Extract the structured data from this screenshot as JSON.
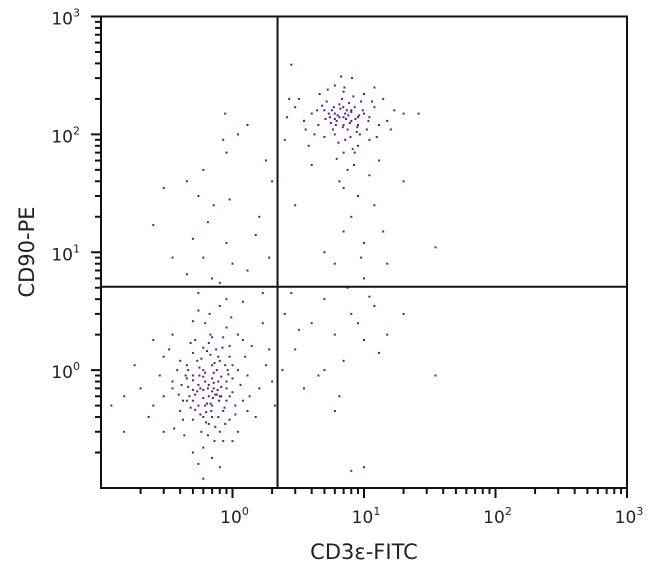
{
  "chart_data": {
    "type": "scatter",
    "xlabel": "CD3ε-FITC",
    "ylabel": "CD90-PE",
    "xscale": "log",
    "yscale": "log",
    "xlim": [
      0.1,
      1000
    ],
    "ylim": [
      0.1,
      1000
    ],
    "x_ticks": [
      {
        "base": "10",
        "exp": "0",
        "value": 1
      },
      {
        "base": "10",
        "exp": "1",
        "value": 10
      },
      {
        "base": "10",
        "exp": "2",
        "value": 100
      },
      {
        "base": "10",
        "exp": "3",
        "value": 1000
      }
    ],
    "y_ticks": [
      {
        "base": "10",
        "exp": "0",
        "value": 1
      },
      {
        "base": "10",
        "exp": "1",
        "value": 10
      },
      {
        "base": "10",
        "exp": "2",
        "value": 100
      },
      {
        "base": "10",
        "exp": "3",
        "value": 1000
      }
    ],
    "grid": false,
    "quadrant_gates": {
      "x": 2.2,
      "y": 5.1
    },
    "point_color": "#5b1a8f",
    "points": [
      [
        0.65,
        0.7
      ],
      [
        0.5,
        0.9
      ],
      [
        0.8,
        0.6
      ],
      [
        0.7,
        1.1
      ],
      [
        0.45,
        0.55
      ],
      [
        0.9,
        0.8
      ],
      [
        0.6,
        0.4
      ],
      [
        0.75,
        1.5
      ],
      [
        0.55,
        0.75
      ],
      [
        1.0,
        0.65
      ],
      [
        0.4,
        1.2
      ],
      [
        0.85,
        0.45
      ],
      [
        0.62,
        0.95
      ],
      [
        0.7,
        0.5
      ],
      [
        0.52,
        0.62
      ],
      [
        1.1,
        1.0
      ],
      [
        0.68,
        2.0
      ],
      [
        0.35,
        0.8
      ],
      [
        0.95,
        1.3
      ],
      [
        0.58,
        0.3
      ],
      [
        0.72,
        0.78
      ],
      [
        0.48,
        0.48
      ],
      [
        0.82,
        0.88
      ],
      [
        1.2,
        0.55
      ],
      [
        0.3,
        0.6
      ],
      [
        0.66,
        1.7
      ],
      [
        0.88,
        0.35
      ],
      [
        0.6,
        0.58
      ],
      [
        0.77,
        0.68
      ],
      [
        0.5,
        1.4
      ],
      [
        1.3,
        0.9
      ],
      [
        0.42,
        0.38
      ],
      [
        0.73,
        0.25
      ],
      [
        0.9,
        2.3
      ],
      [
        0.56,
        1.05
      ],
      [
        0.64,
        0.52
      ],
      [
        0.8,
        1.2
      ],
      [
        0.46,
        0.72
      ],
      [
        1.05,
        0.42
      ],
      [
        0.7,
        0.85
      ],
      [
        0.38,
        1.0
      ],
      [
        0.6,
        0.22
      ],
      [
        0.95,
        0.6
      ],
      [
        0.54,
        0.66
      ],
      [
        0.78,
        0.4
      ],
      [
        1.4,
        1.6
      ],
      [
        0.25,
        0.5
      ],
      [
        0.67,
        3.0
      ],
      [
        0.85,
        1.9
      ],
      [
        0.5,
        0.2
      ],
      [
        0.62,
        0.8
      ],
      [
        0.74,
        0.62
      ],
      [
        0.44,
        0.9
      ],
      [
        1.0,
        1.1
      ],
      [
        0.58,
        1.25
      ],
      [
        0.8,
        0.3
      ],
      [
        0.69,
        0.45
      ],
      [
        0.36,
        0.32
      ],
      [
        1.15,
        0.75
      ],
      [
        0.52,
        1.8
      ],
      [
        0.9,
        0.55
      ],
      [
        0.63,
        0.36
      ],
      [
        0.47,
        0.6
      ],
      [
        0.76,
        1.0
      ],
      [
        1.6,
        0.7
      ],
      [
        0.33,
        1.5
      ],
      [
        0.7,
        0.18
      ],
      [
        0.98,
        2.8
      ],
      [
        0.55,
        0.5
      ],
      [
        0.82,
        0.72
      ],
      [
        0.6,
        1.55
      ],
      [
        0.4,
        0.45
      ],
      [
        1.25,
        1.3
      ],
      [
        0.71,
        0.58
      ],
      [
        0.5,
        0.82
      ],
      [
        0.87,
        0.48
      ],
      [
        0.2,
        0.7
      ],
      [
        0.65,
        0.28
      ],
      [
        1.1,
        2.0
      ],
      [
        0.45,
        1.1
      ],
      [
        0.93,
        0.92
      ],
      [
        0.57,
        0.42
      ],
      [
        0.79,
        0.55
      ],
      [
        0.68,
        1.35
      ],
      [
        1.8,
        1.1
      ],
      [
        0.28,
        0.9
      ],
      [
        0.6,
        0.68
      ],
      [
        0.74,
        0.33
      ],
      [
        0.5,
        0.38
      ],
      [
        1.05,
        0.5
      ],
      [
        0.62,
        2.5
      ],
      [
        0.84,
        1.55
      ],
      [
        0.39,
        0.62
      ],
      [
        0.72,
        0.95
      ],
      [
        0.55,
        0.16
      ],
      [
        1.5,
        0.4
      ],
      [
        0.66,
        0.6
      ],
      [
        0.48,
        1.7
      ],
      [
        0.9,
        0.7
      ],
      [
        0.6,
        0.88
      ],
      [
        0.15,
        0.6
      ],
      [
        0.78,
        0.8
      ],
      [
        0.43,
        0.28
      ],
      [
        1.2,
        1.8
      ],
      [
        0.7,
        0.4
      ],
      [
        0.54,
        1.2
      ],
      [
        0.35,
        2.0
      ],
      [
        0.95,
        0.38
      ],
      [
        0.62,
        0.5
      ],
      [
        2.0,
        0.8
      ],
      [
        0.8,
        3.5
      ],
      [
        0.5,
        0.55
      ],
      [
        0.73,
        1.15
      ],
      [
        0.3,
        0.3
      ],
      [
        1.0,
        0.85
      ],
      [
        0.57,
        0.7
      ],
      [
        0.85,
        0.25
      ],
      [
        0.66,
        0.75
      ],
      [
        0.46,
        1.0
      ],
      [
        1.35,
        0.6
      ],
      [
        0.18,
        1.1
      ],
      [
        0.6,
        0.12
      ],
      [
        0.7,
        1.9
      ],
      [
        0.88,
        1.1
      ],
      [
        0.52,
        0.46
      ],
      [
        0.76,
        0.62
      ],
      [
        1.1,
        0.3
      ],
      [
        0.41,
        0.75
      ],
      [
        0.64,
        1.45
      ],
      [
        0.9,
        4.0
      ],
      [
        0.5,
        2.6
      ],
      [
        1.7,
        2.5
      ],
      [
        0.23,
        0.4
      ],
      [
        0.12,
        0.5
      ],
      [
        0.8,
        0.15
      ],
      [
        0.55,
        3.2
      ],
      [
        0.95,
        1.6
      ],
      [
        0.68,
        0.52
      ],
      [
        0.42,
        0.55
      ],
      [
        0.72,
        0.7
      ],
      [
        1.3,
        0.45
      ],
      [
        0.6,
        1.0
      ],
      [
        0.35,
        0.7
      ],
      [
        0.82,
        0.6
      ],
      [
        0.5,
        0.68
      ],
      [
        0.78,
        1.3
      ],
      [
        0.63,
        0.44
      ],
      [
        1.0,
        0.25
      ],
      [
        0.45,
        0.85
      ],
      [
        0.7,
        0.66
      ],
      [
        0.56,
        0.9
      ],
      [
        0.92,
        1.0
      ],
      [
        0.66,
        0.35
      ],
      [
        0.15,
        0.3
      ],
      [
        0.3,
        1.3
      ],
      [
        2.1,
        0.5
      ],
      [
        1.9,
        1.5
      ],
      [
        0.25,
        1.8
      ],
      [
        0.55,
        4.5
      ],
      [
        0.7,
        6
      ],
      [
        0.6,
        9
      ],
      [
        0.8,
        5.5
      ],
      [
        1.0,
        8
      ],
      [
        0.5,
        13
      ],
      [
        0.65,
        18
      ],
      [
        0.9,
        12
      ],
      [
        1.3,
        7
      ],
      [
        1.5,
        14
      ],
      [
        0.72,
        25
      ],
      [
        0.55,
        30
      ],
      [
        0.45,
        40
      ],
      [
        0.3,
        35
      ],
      [
        0.6,
        50
      ],
      [
        0.9,
        70
      ],
      [
        0.85,
        90
      ],
      [
        0.88,
        150
      ],
      [
        1.3,
        120
      ],
      [
        1.6,
        20
      ],
      [
        1.9,
        9
      ],
      [
        2.0,
        40
      ],
      [
        0.25,
        17
      ],
      [
        0.35,
        9
      ],
      [
        1.2,
        3.8
      ],
      [
        1.7,
        4.5
      ],
      [
        0.45,
        6.5
      ],
      [
        1.1,
        100
      ],
      [
        1.8,
        60
      ],
      [
        0.95,
        28
      ],
      [
        2.5,
        3
      ],
      [
        3,
        1.5
      ],
      [
        4,
        2.5
      ],
      [
        5,
        4
      ],
      [
        6,
        2
      ],
      [
        8,
        3
      ],
      [
        7,
        1.2
      ],
      [
        9,
        2.5
      ],
      [
        10,
        1.8
      ],
      [
        12,
        3.5
      ],
      [
        4.5,
        0.9
      ],
      [
        3.5,
        0.7
      ],
      [
        6.5,
        0.6
      ],
      [
        15,
        2
      ],
      [
        20,
        3
      ],
      [
        35,
        0.9
      ],
      [
        8,
        0.14
      ],
      [
        10,
        0.15
      ],
      [
        5,
        1
      ],
      [
        2.8,
        4.5
      ],
      [
        11,
        4.2
      ],
      [
        7.5,
        5
      ],
      [
        3.2,
        2.2
      ],
      [
        13,
        1.4
      ],
      [
        2.4,
        1
      ],
      [
        6,
        0.45
      ],
      [
        5,
        10
      ],
      [
        6,
        8
      ],
      [
        7,
        15
      ],
      [
        8,
        20
      ],
      [
        9,
        30
      ],
      [
        10,
        12
      ],
      [
        6.5,
        40
      ],
      [
        7.5,
        50
      ],
      [
        12,
        25
      ],
      [
        15,
        8
      ],
      [
        10,
        6
      ],
      [
        11,
        45
      ],
      [
        8.5,
        70
      ],
      [
        13,
        60
      ],
      [
        7,
        35
      ],
      [
        9.5,
        9
      ],
      [
        14,
        15
      ],
      [
        35,
        11
      ],
      [
        20,
        40
      ],
      [
        4,
        55
      ],
      [
        3,
        25
      ],
      [
        2.5,
        90
      ],
      [
        7,
        140
      ],
      [
        6,
        150
      ],
      [
        8,
        130
      ],
      [
        5,
        160
      ],
      [
        9,
        120
      ],
      [
        6.5,
        180
      ],
      [
        7.5,
        110
      ],
      [
        5.5,
        140
      ],
      [
        8.5,
        170
      ],
      [
        10,
        150
      ],
      [
        4.5,
        120
      ],
      [
        6.8,
        200
      ],
      [
        7.2,
        90
      ],
      [
        5.8,
        110
      ],
      [
        9.5,
        190
      ],
      [
        6.2,
        130
      ],
      [
        8,
        155
      ],
      [
        11,
        140
      ],
      [
        4,
        150
      ],
      [
        7,
        230
      ],
      [
        6,
        100
      ],
      [
        8.8,
        105
      ],
      [
        5.2,
        190
      ],
      [
        12,
        170
      ],
      [
        7.8,
        125
      ],
      [
        6.6,
        165
      ],
      [
        3.5,
        130
      ],
      [
        9,
        80
      ],
      [
        7,
        70
      ],
      [
        5,
        95
      ],
      [
        13,
        120
      ],
      [
        6.3,
        145
      ],
      [
        8.3,
        210
      ],
      [
        4.8,
        175
      ],
      [
        10.5,
        110
      ],
      [
        7.4,
        160
      ],
      [
        5.6,
        125
      ],
      [
        9.2,
        145
      ],
      [
        6.9,
        115
      ],
      [
        3,
        170
      ],
      [
        15,
        130
      ],
      [
        7.1,
        250
      ],
      [
        8.6,
        135
      ],
      [
        4.2,
        100
      ],
      [
        6,
        260
      ],
      [
        11.5,
        190
      ],
      [
        5.4,
        150
      ],
      [
        7.7,
        185
      ],
      [
        6.4,
        85
      ],
      [
        9.8,
        160
      ],
      [
        2.6,
        140
      ],
      [
        3.2,
        200
      ],
      [
        17,
        160
      ],
      [
        8.1,
        300
      ],
      [
        6.7,
        310
      ],
      [
        12.5,
        95
      ],
      [
        4.6,
        220
      ],
      [
        7.3,
        135
      ],
      [
        5.9,
        170
      ],
      [
        10,
        220
      ],
      [
        8.9,
        115
      ],
      [
        6.1,
        120
      ],
      [
        7.6,
        145
      ],
      [
        5.1,
        135
      ],
      [
        9.3,
        100
      ],
      [
        6.95,
        170
      ],
      [
        3.8,
        80
      ],
      [
        20,
        150
      ],
      [
        14,
        200
      ],
      [
        8.2,
        75
      ],
      [
        5.3,
        240
      ],
      [
        2.8,
        390
      ],
      [
        10.8,
        130
      ],
      [
        7,
        120
      ],
      [
        6.5,
        140
      ],
      [
        8,
        160
      ],
      [
        7.2,
        150
      ],
      [
        5.7,
        160
      ],
      [
        9,
        140
      ],
      [
        6,
        135
      ],
      [
        4.4,
        160
      ],
      [
        11,
        90
      ],
      [
        3.6,
        110
      ],
      [
        12,
        250
      ],
      [
        26,
        150
      ],
      [
        2.7,
        200
      ],
      [
        16,
        110
      ],
      [
        7.9,
        95
      ],
      [
        6.2,
        62
      ],
      [
        8.4,
        55
      ]
    ]
  }
}
